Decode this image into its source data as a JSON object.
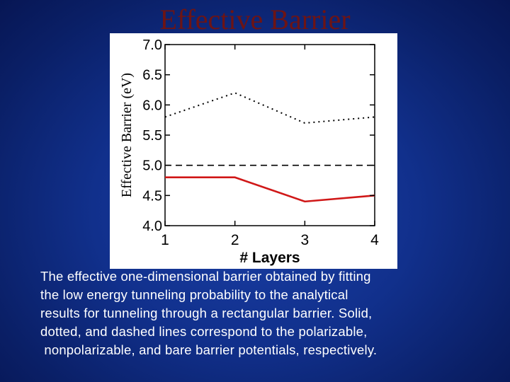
{
  "slide": {
    "title": "Effective Barrier",
    "caption_lines": [
      "The effective one-dimensional barrier obtained by fitting",
      "the low energy tunneling probability to the analytical",
      "results for tunneling through a rectangular barrier. Solid,",
      "dotted, and dashed lines correspond to the polarizable,",
      " nonpolarizable, and bare barrier potentials, respectively."
    ]
  },
  "chart_data": {
    "type": "line",
    "xlabel": "# Layers",
    "ylabel": "Effective Barrier (eV)",
    "xlim": [
      1,
      4
    ],
    "ylim": [
      4.0,
      7.0
    ],
    "x_ticks": [
      1,
      2,
      3,
      4
    ],
    "y_ticks": [
      "7.0",
      "6.5",
      "6.0",
      "5.5",
      "5.0",
      "4.5",
      "4.0"
    ],
    "grid": false,
    "series": [
      {
        "style": "dotted",
        "color": "#000000",
        "x": [
          1,
          2,
          3,
          4
        ],
        "values": [
          5.8,
          6.2,
          5.7,
          5.8
        ]
      },
      {
        "style": "dashed",
        "color": "#000000",
        "x": [
          1,
          2,
          3,
          4
        ],
        "values": [
          5.0,
          5.0,
          5.0,
          5.0
        ]
      },
      {
        "style": "solid",
        "color": "#d01818",
        "x": [
          1,
          2,
          3,
          4
        ],
        "values": [
          4.8,
          4.8,
          4.4,
          4.5
        ]
      }
    ]
  }
}
